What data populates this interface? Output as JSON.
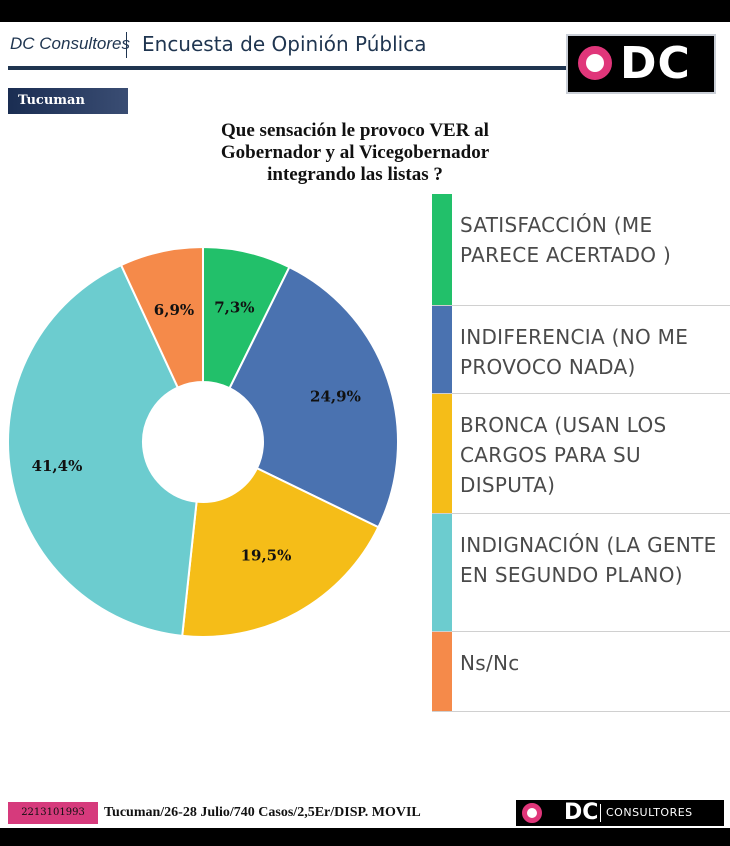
{
  "header": {
    "brand": "DC Consultores",
    "title": "Encuesta de Opinión Pública",
    "logo_text": "DC"
  },
  "region_tag": "Tucuman",
  "question": "Que sensación le provoco VER al Gobernador y al Vicegobernador integrando las listas ?",
  "chart_data": {
    "type": "pie",
    "donut": true,
    "title": "Que sensación le provoco VER al Gobernador y al Vicegobernador integrando las listas ?",
    "categories": [
      "SATISFACCIÓN (ME PARECE ACERTADO )",
      "INDIFERENCIA (NO ME PROVOCO NADA)",
      "BRONCA (USAN LOS CARGOS PARA SU DISPUTA)",
      "INDIGNACIÓN (LA GENTE EN SEGUNDO PLANO)",
      "Ns/Nc"
    ],
    "values": [
      7.3,
      24.9,
      19.5,
      41.4,
      6.9
    ],
    "data_labels": [
      "7,3%",
      "24,9%",
      "19,5%",
      "41,4%",
      "6,9%"
    ],
    "colors": [
      "#22c06a",
      "#4a72b0",
      "#f5bd18",
      "#6ccccf",
      "#f58a4a"
    ],
    "legend_position": "right"
  },
  "legend": {
    "items": [
      {
        "label": "SATISFACCIÓN (ME PARECE ACERTADO )",
        "color": "#22c06a"
      },
      {
        "label": "INDIFERENCIA (NO ME PROVOCO NADA)",
        "color": "#4a72b0"
      },
      {
        "label": "BRONCA (USAN LOS CARGOS PARA SU DISPUTA)",
        "color": "#f5bd18"
      },
      {
        "label": "INDIGNACIÓN (LA GENTE EN SEGUNDO PLANO)",
        "color": "#6ccccf"
      },
      {
        "label": "Ns/Nc",
        "color": "#f58a4a"
      }
    ]
  },
  "footer": {
    "phone": "2213101993",
    "info": "Tucuman/26-28 Julio/740 Casos/2,5Er/DISP. MOVIL",
    "logo_dc": "DC",
    "logo_consultores": "CONSULTORES"
  }
}
